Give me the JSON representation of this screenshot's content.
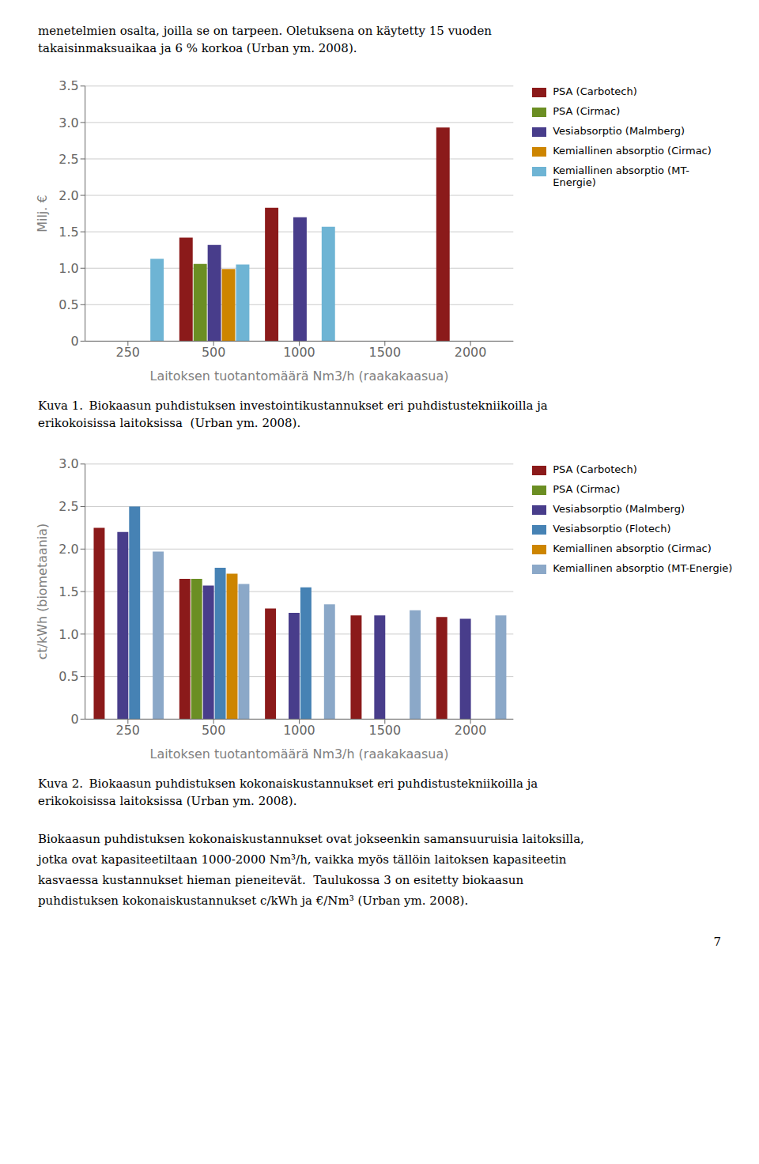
{
  "text_top": [
    "menetelmien osalta, joilla se on tarpeen. Oletuksena on käytetty 15 vuoden",
    "takaisinmaksuaikaa ja 6 % korkoa (Urban ym. 2008)."
  ],
  "chart_data": [
    {
      "type": "bar",
      "ylabel": "Milj. €",
      "xlabel": "Laitoksen tuotantomäärä Nm3/h (raakakaasua)",
      "categories": [
        250,
        500,
        1000,
        1500,
        2000
      ],
      "series": [
        {
          "name": "PSA (Carbotech)",
          "color": "#8B1A1A",
          "values": [
            null,
            1.42,
            1.83,
            null,
            2.93
          ]
        },
        {
          "name": "PSA (Cirmac)",
          "color": "#6B8E23",
          "values": [
            null,
            1.06,
            null,
            null,
            null
          ]
        },
        {
          "name": "Vesiabsorptio (Malmberg)",
          "color": "#483D8B",
          "values": [
            null,
            1.32,
            1.7,
            null,
            null
          ]
        },
        {
          "name": "Kemiallinen absorptio (Cirmac)",
          "color": "#CD8500",
          "values": [
            null,
            0.99,
            null,
            null,
            null
          ]
        },
        {
          "name": "Kemiallinen absorptio (MT-\nEnergie)",
          "color": "#6EB4D4",
          "values": [
            1.13,
            1.05,
            1.57,
            null,
            null
          ]
        }
      ],
      "ylim": [
        0,
        3.5
      ],
      "yticks": [
        0,
        0.5,
        {
          "value": 1,
          "label": "1.0"
        },
        1.5,
        {
          "value": 2,
          "label": "2.0"
        },
        2.5,
        {
          "value": 3,
          "label": "3.0"
        },
        3.5
      ],
      "grid": true,
      "annotations": [
        "Kuva 1. Biokaasun puhdistuksen investointikustannukset eri puhdistustekniikoilla ja",
        "erikokoisissa laitoksissa  (Urban ym. 2008)."
      ]
    },
    {
      "type": "bar",
      "ylabel": "ct/kWh (biometaania)",
      "xlabel": "Laitoksen tuotantomäärä Nm3/h (raakakaasua)",
      "categories": [
        250,
        500,
        1000,
        1500,
        2000
      ],
      "series": [
        {
          "name": "PSA (Carbotech)",
          "color": "#8B1A1A",
          "values": [
            2.25,
            1.65,
            1.3,
            1.22,
            1.2
          ]
        },
        {
          "name": "PSA (Cirmac)",
          "color": "#6B8E23",
          "values": [
            null,
            1.65,
            null,
            null,
            null
          ]
        },
        {
          "name": "Vesiabsorptio (Malmberg)",
          "color": "#483D8B",
          "values": [
            2.2,
            1.57,
            1.25,
            1.22,
            1.18
          ]
        },
        {
          "name": "Vesiabsorptio (Flotech)",
          "color": "#4682B4",
          "values": [
            2.5,
            1.78,
            1.55,
            null,
            null
          ]
        },
        {
          "name": "Kemiallinen absorptio (Cirmac)",
          "color": "#CD8500",
          "values": [
            null,
            1.71,
            null,
            null,
            null
          ]
        },
        {
          "name": "Kemiallinen absorptio (MT-Energie)",
          "color": "#8BA8C8",
          "values": [
            1.97,
            1.59,
            1.35,
            1.28,
            1.22
          ]
        }
      ],
      "ylim": [
        0,
        3.0
      ],
      "yticks": [
        0,
        0.5,
        {
          "value": 1,
          "label": "1.0"
        },
        1.5,
        {
          "value": 2,
          "label": "2.0"
        },
        2.5,
        {
          "value": 3,
          "label": "3.0"
        }
      ],
      "grid": true,
      "annotations": [
        "Kuva 2. Biokaasun puhdistuksen kokonaiskustannukset eri puhdistustekniikoilla ja",
        "erikokoisissa laitoksissa (Urban ym. 2008)."
      ]
    }
  ],
  "body_text": [
    "Biokaasun puhdistuksen kokonaiskustannukset ovat jokseenkin samansuuruisia laitoksilla,",
    "jotka ovat kapasiteetiltaan 1000-2000 Nm³/h, vaikka myös tällöin laitoksen kapasiteetin",
    "kasvaessa kustannukset hieman pieneitevät.  Taulukossa 3 on esitetty biokaasun",
    "puhdistuksen kokonaiskustannukset c/kWh ja €/Nm³ (Urban ym. 2008)."
  ],
  "page_number": "7"
}
